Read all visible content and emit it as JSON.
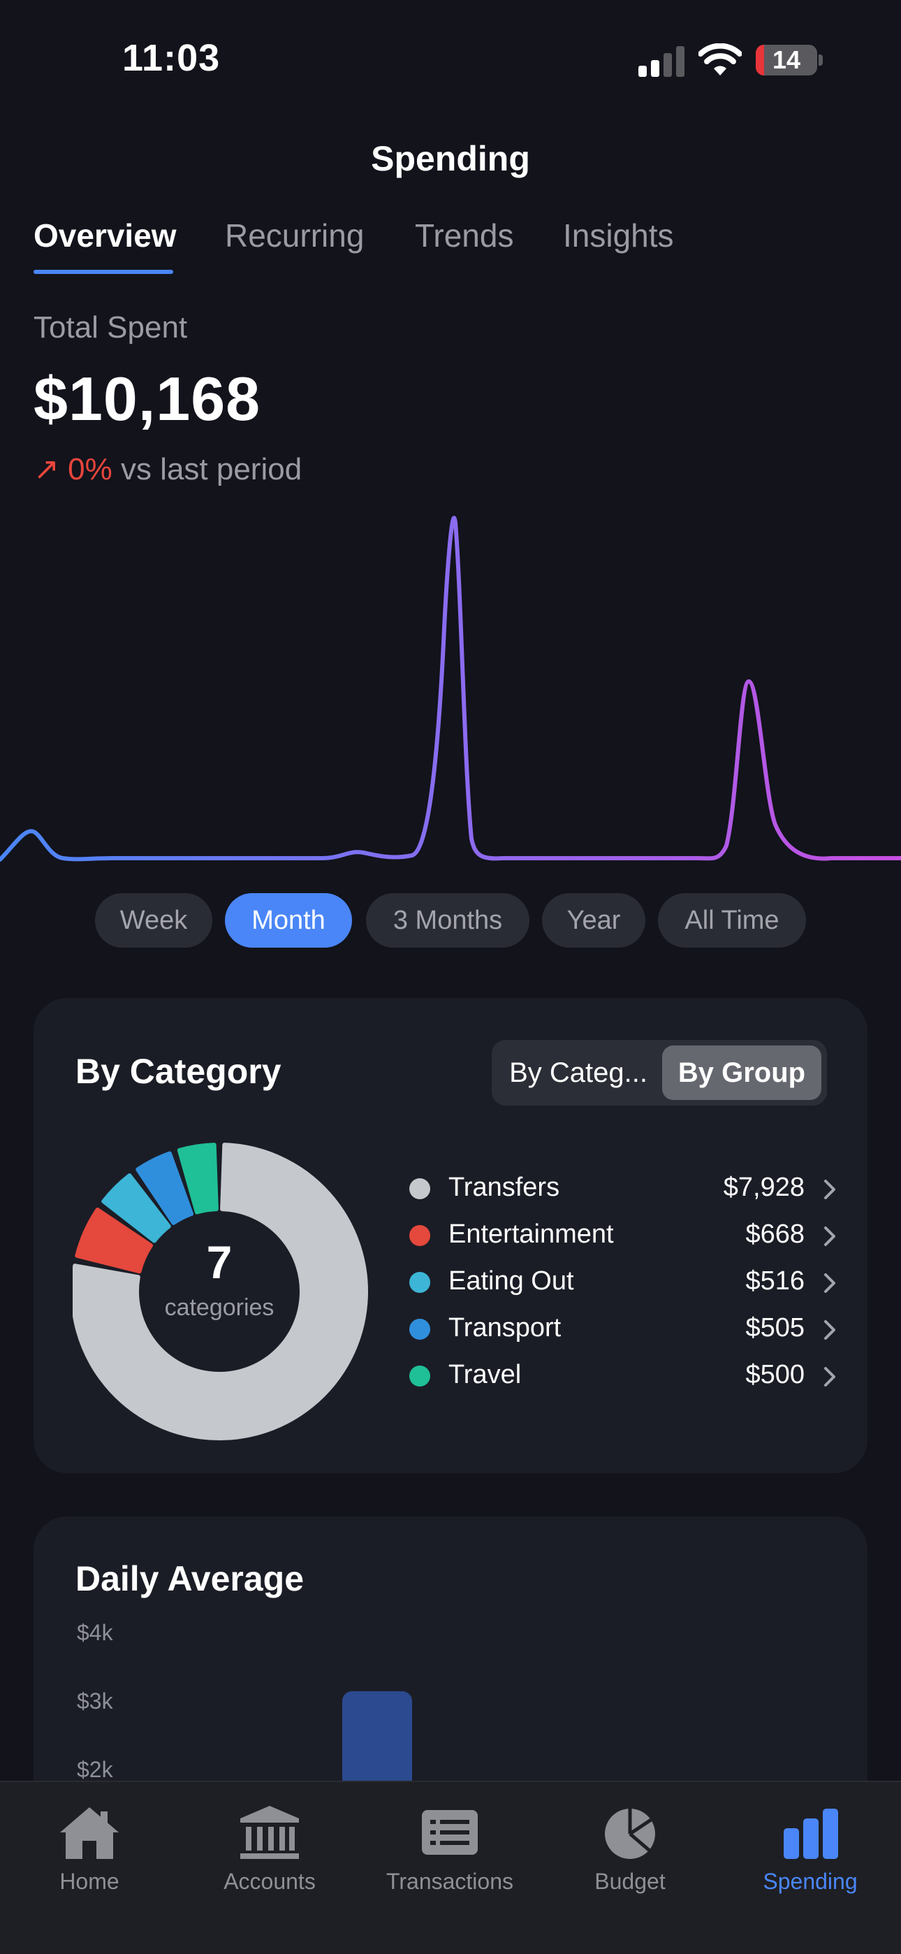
{
  "status_bar": {
    "time": "11:03",
    "battery_level": "14"
  },
  "header": {
    "title": "Spending",
    "tabs": [
      {
        "label": "Overview",
        "active": true
      },
      {
        "label": "Recurring",
        "active": false
      },
      {
        "label": "Trends",
        "active": false
      },
      {
        "label": "Insights",
        "active": false
      }
    ]
  },
  "summary": {
    "label": "Total Spent",
    "value": "$10,168",
    "change_pct": "0%",
    "change_text": "vs last period"
  },
  "periods": [
    {
      "label": "Week",
      "active": false
    },
    {
      "label": "Month",
      "active": true
    },
    {
      "label": "3 Months",
      "active": false
    },
    {
      "label": "Year",
      "active": false
    },
    {
      "label": "All Time",
      "active": false
    }
  ],
  "by_category": {
    "title": "By Category",
    "toggle": [
      {
        "label": "By Categ...",
        "active": false
      },
      {
        "label": "By Group",
        "active": true
      }
    ],
    "count": "7",
    "count_label": "categories",
    "items": [
      {
        "name": "Transfers",
        "amount": "$7,928",
        "value": 7928,
        "color": "#c5c8cc"
      },
      {
        "name": "Entertainment",
        "amount": "$668",
        "value": 668,
        "color": "#e5483c"
      },
      {
        "name": "Eating Out",
        "amount": "$516",
        "value": 516,
        "color": "#3db5d6"
      },
      {
        "name": "Transport",
        "amount": "$505",
        "value": 505,
        "color": "#2f8fdd"
      },
      {
        "name": "Travel",
        "amount": "$500",
        "value": 500,
        "color": "#1fbf97"
      }
    ]
  },
  "daily_average": {
    "title": "Daily Average",
    "y_ticks": [
      "$4k",
      "$3k",
      "$2k"
    ]
  },
  "tab_bar": {
    "items": [
      {
        "label": "Home",
        "icon": "home-icon",
        "active": false
      },
      {
        "label": "Accounts",
        "icon": "bank-icon",
        "active": false
      },
      {
        "label": "Transactions",
        "icon": "list-icon",
        "active": false
      },
      {
        "label": "Budget",
        "icon": "pie-icon",
        "active": false
      },
      {
        "label": "Spending",
        "icon": "bar-chart-icon",
        "active": true
      }
    ]
  },
  "colors": {
    "accent": "#4a86f7",
    "negative": "#e8453c",
    "background": "#12131b",
    "card": "#1b1d26"
  }
}
